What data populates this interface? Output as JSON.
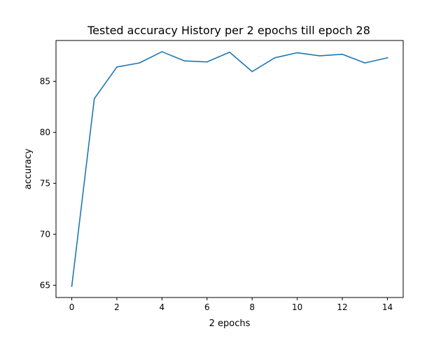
{
  "chart_data": {
    "type": "line",
    "title": "Tested accuracy History per 2 epochs till epoch 28",
    "xlabel": "2 epochs",
    "ylabel": "accuracy",
    "x": [
      0,
      1,
      2,
      3,
      4,
      5,
      6,
      7,
      8,
      9,
      10,
      11,
      12,
      13,
      14
    ],
    "series": [
      {
        "values": [
          64.9,
          83.3,
          86.4,
          86.8,
          87.9,
          87.0,
          86.9,
          87.85,
          85.95,
          87.3,
          87.8,
          87.5,
          87.65,
          86.8,
          87.3
        ],
        "color": "#1f77b4"
      }
    ],
    "xlim": [
      -0.7,
      14.7
    ],
    "ylim": [
      63.8,
      89.0
    ],
    "xticks": [
      0,
      2,
      4,
      6,
      8,
      10,
      12,
      14
    ],
    "yticks": [
      65,
      70,
      75,
      80,
      85
    ],
    "xtick_labels": [
      "0",
      "2",
      "4",
      "6",
      "8",
      "10",
      "12",
      "14"
    ],
    "ytick_labels": [
      "65",
      "70",
      "75",
      "80",
      "85"
    ],
    "grid": false,
    "legend": false
  }
}
